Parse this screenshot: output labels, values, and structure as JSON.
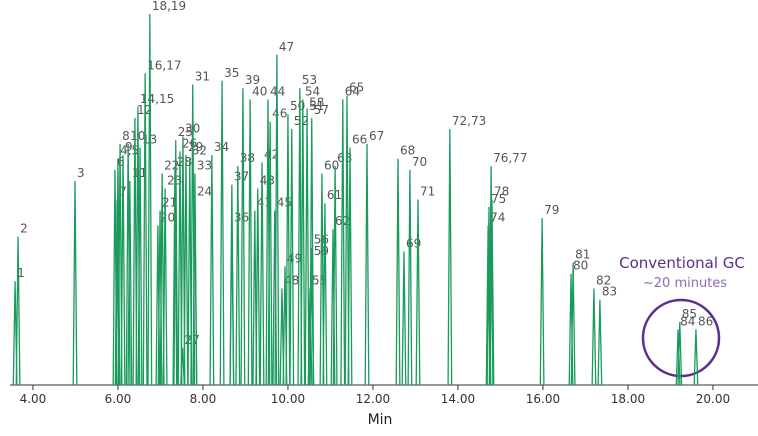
{
  "chart_data": {
    "type": "chromatogram",
    "color": "#1a9a5c",
    "xlabel": "Min",
    "annotation": {
      "title": "Conventional GC",
      "subtitle": "~20 minutes"
    },
    "xlim": [
      3.46,
      21.06
    ],
    "ylim": [
      0,
      100
    ],
    "xticks": [
      {
        "value": 4,
        "label": "4.00"
      },
      {
        "value": 6,
        "label": "6.00"
      },
      {
        "value": 8,
        "label": "8.00"
      },
      {
        "value": 10,
        "label": "10.00"
      },
      {
        "value": 12,
        "label": "12.00"
      },
      {
        "value": 14,
        "label": "14.00"
      },
      {
        "value": 16,
        "label": "16.00"
      },
      {
        "value": 18,
        "label": "18.00"
      },
      {
        "value": 20,
        "label": "20.00"
      }
    ],
    "peak_labels": [
      "1",
      "2",
      "3",
      "4,5",
      "6",
      "7",
      "8",
      "9",
      "10",
      "11",
      "12",
      "13",
      "14,15",
      "16,17",
      "18,19",
      "20",
      "21",
      "22",
      "23",
      "24",
      "25",
      "26",
      "27",
      "28",
      "29",
      "30",
      "31",
      "32",
      "33",
      "34",
      "35",
      "36",
      "37",
      "38",
      "39",
      "40",
      "41",
      "42",
      "43",
      "44",
      "45",
      "46",
      "47",
      "48",
      "49",
      "50,51",
      "52",
      "53",
      "54",
      "55",
      "56",
      "57",
      "58",
      "59",
      "60",
      "61",
      "62",
      "63",
      "64",
      "65",
      "66",
      "67",
      "68",
      "69",
      "70",
      "71",
      "72,73",
      "74",
      "75",
      "76,77",
      "78",
      "79",
      "80",
      "81",
      "82",
      "83",
      "84",
      "85",
      "86"
    ],
    "x": [
      3.58,
      3.65,
      4.99,
      6.0,
      5.93,
      5.98,
      6.05,
      6.12,
      6.24,
      6.28,
      6.4,
      6.52,
      6.47,
      6.64,
      6.75,
      6.94,
      6.99,
      7.04,
      7.11,
      7.81,
      7.36,
      7.46,
      7.52,
      7.34,
      7.6,
      7.53,
      7.76,
      7.69,
      7.81,
      8.21,
      8.45,
      8.68,
      8.68,
      8.82,
      8.94,
      9.11,
      9.22,
      9.39,
      9.29,
      9.53,
      9.69,
      9.58,
      9.74,
      9.86,
      9.93,
      10.0,
      10.09,
      10.28,
      10.35,
      10.52,
      10.56,
      10.56,
      10.45,
      10.56,
      10.8,
      10.87,
      11.06,
      11.11,
      11.29,
      11.39,
      11.46,
      11.86,
      12.59,
      12.73,
      12.87,
      13.06,
      13.81,
      14.71,
      14.73,
      14.78,
      14.8,
      15.98,
      16.66,
      16.71,
      17.2,
      17.34,
      19.18,
      19.22,
      19.6
    ],
    "values": [
      28,
      40,
      55,
      61,
      58,
      50,
      65,
      62,
      65,
      55,
      72,
      64,
      75,
      84,
      100,
      43,
      47,
      57,
      53,
      50,
      66,
      63,
      10,
      58,
      62,
      67,
      81,
      61,
      57,
      62,
      82,
      43,
      54,
      59,
      80,
      77,
      47,
      60,
      53,
      77,
      47,
      71,
      89,
      26,
      32,
      73,
      69,
      80,
      77,
      26,
      37,
      72,
      74,
      34,
      57,
      49,
      42,
      59,
      77,
      78,
      64,
      65,
      61,
      36,
      58,
      50,
      69,
      43,
      48,
      59,
      50,
      45,
      30,
      33,
      26,
      23,
      15,
      17,
      15
    ]
  }
}
